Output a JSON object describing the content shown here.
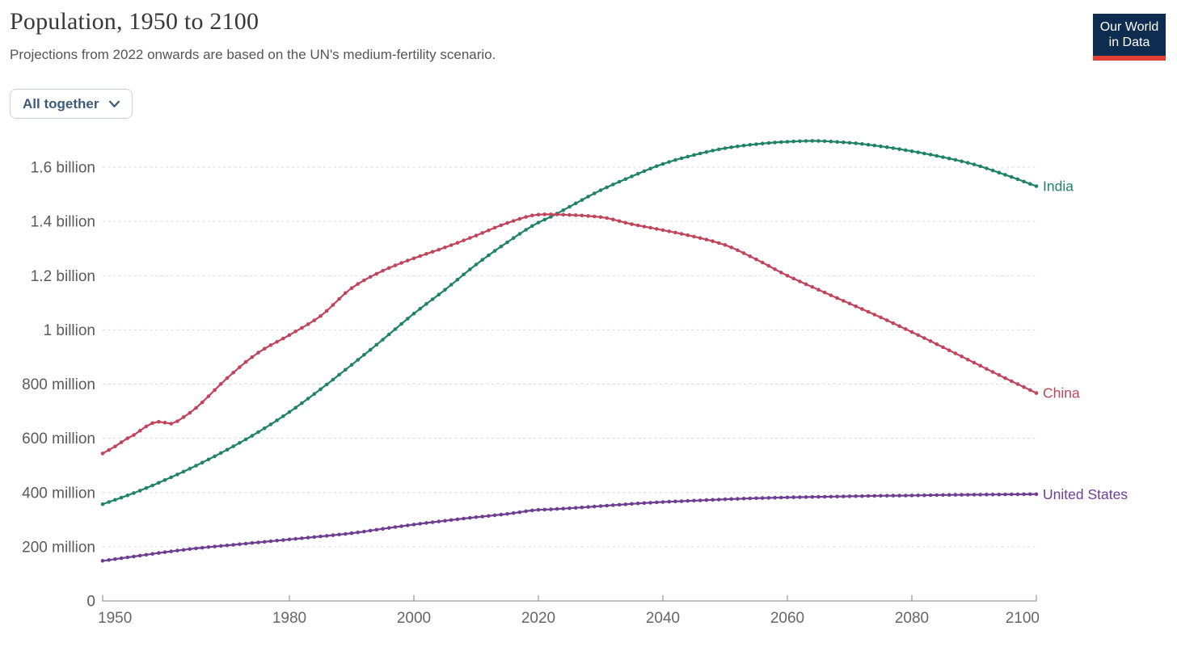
{
  "header": {
    "title": "Population, 1950 to 2100",
    "subtitle": "Projections from 2022 onwards are based on the UN's medium-fertility scenario.",
    "logo": {
      "line1": "Our World",
      "line2": "in Data",
      "bg_color": "#0d2c4f",
      "bar_color": "#e23d33",
      "text_color": "#ffffff"
    }
  },
  "controls": {
    "entity_dropdown": {
      "label": "All together",
      "icon": "chevron-down-icon"
    }
  },
  "chart_data": {
    "type": "line",
    "title": "Population, 1950 to 2100",
    "xlabel": "",
    "ylabel": "",
    "unit": "millions of people",
    "x_range": [
      1950,
      2100
    ],
    "y_range_millions": [
      0,
      1700
    ],
    "grid": "dashed horizontal gridlines",
    "legend_position": "line-end labels at right",
    "markers": "dot at every year",
    "x_ticks": [
      1950,
      1980,
      2000,
      2020,
      2040,
      2060,
      2080,
      2100
    ],
    "y_ticks": [
      {
        "value": 0,
        "label": "0"
      },
      {
        "value": 200,
        "label": "200 million"
      },
      {
        "value": 400,
        "label": "400 million"
      },
      {
        "value": 600,
        "label": "600 million"
      },
      {
        "value": 800,
        "label": "800 million"
      },
      {
        "value": 1000,
        "label": "1 billion"
      },
      {
        "value": 1200,
        "label": "1.2 billion"
      },
      {
        "value": 1400,
        "label": "1.4 billion"
      },
      {
        "value": 1600,
        "label": "1.6 billion"
      }
    ],
    "series": [
      {
        "name": "India",
        "color": "#208365",
        "points_year_millions": [
          [
            1950,
            357
          ],
          [
            1955,
            398
          ],
          [
            1960,
            446
          ],
          [
            1965,
            499
          ],
          [
            1970,
            558
          ],
          [
            1975,
            623
          ],
          [
            1980,
            697
          ],
          [
            1985,
            781
          ],
          [
            1990,
            871
          ],
          [
            1995,
            964
          ],
          [
            2000,
            1060
          ],
          [
            2005,
            1148
          ],
          [
            2010,
            1241
          ],
          [
            2015,
            1323
          ],
          [
            2020,
            1396
          ],
          [
            2022,
            1417
          ],
          [
            2025,
            1454
          ],
          [
            2030,
            1515
          ],
          [
            2035,
            1566
          ],
          [
            2040,
            1612
          ],
          [
            2045,
            1645
          ],
          [
            2050,
            1670
          ],
          [
            2055,
            1685
          ],
          [
            2060,
            1694
          ],
          [
            2064,
            1697
          ],
          [
            2070,
            1690
          ],
          [
            2075,
            1677
          ],
          [
            2080,
            1659
          ],
          [
            2085,
            1637
          ],
          [
            2090,
            1610
          ],
          [
            2095,
            1572
          ],
          [
            2100,
            1530
          ]
        ]
      },
      {
        "name": "China",
        "color": "#c0445c",
        "points_year_millions": [
          [
            1950,
            544
          ],
          [
            1952,
            570
          ],
          [
            1954,
            600
          ],
          [
            1955,
            612
          ],
          [
            1956,
            628
          ],
          [
            1957,
            644
          ],
          [
            1958,
            656
          ],
          [
            1959,
            661
          ],
          [
            1960,
            658
          ],
          [
            1961,
            654
          ],
          [
            1962,
            663
          ],
          [
            1963,
            678
          ],
          [
            1964,
            694
          ],
          [
            1965,
            712
          ],
          [
            1970,
            822
          ],
          [
            1975,
            916
          ],
          [
            1980,
            981
          ],
          [
            1985,
            1051
          ],
          [
            1990,
            1154
          ],
          [
            1995,
            1218
          ],
          [
            2000,
            1264
          ],
          [
            2005,
            1304
          ],
          [
            2010,
            1348
          ],
          [
            2015,
            1394
          ],
          [
            2020,
            1425
          ],
          [
            2021,
            1426
          ],
          [
            2022,
            1426
          ],
          [
            2025,
            1424
          ],
          [
            2030,
            1416
          ],
          [
            2035,
            1390
          ],
          [
            2040,
            1368
          ],
          [
            2045,
            1344
          ],
          [
            2050,
            1313
          ],
          [
            2055,
            1260
          ],
          [
            2060,
            1200
          ],
          [
            2065,
            1148
          ],
          [
            2070,
            1097
          ],
          [
            2075,
            1046
          ],
          [
            2080,
            992
          ],
          [
            2085,
            936
          ],
          [
            2090,
            879
          ],
          [
            2095,
            822
          ],
          [
            2100,
            767
          ]
        ]
      },
      {
        "name": "United States",
        "color": "#6d3e91",
        "points_year_millions": [
          [
            1950,
            148
          ],
          [
            1955,
            164
          ],
          [
            1960,
            180
          ],
          [
            1965,
            194
          ],
          [
            1970,
            205
          ],
          [
            1975,
            216
          ],
          [
            1980,
            227
          ],
          [
            1985,
            238
          ],
          [
            1990,
            250
          ],
          [
            1995,
            266
          ],
          [
            2000,
            282
          ],
          [
            2005,
            296
          ],
          [
            2010,
            309
          ],
          [
            2015,
            321
          ],
          [
            2020,
            336
          ],
          [
            2022,
            338
          ],
          [
            2025,
            342
          ],
          [
            2030,
            350
          ],
          [
            2035,
            358
          ],
          [
            2040,
            365
          ],
          [
            2045,
            370
          ],
          [
            2050,
            375
          ],
          [
            2055,
            379
          ],
          [
            2060,
            382
          ],
          [
            2065,
            384
          ],
          [
            2070,
            386
          ],
          [
            2075,
            388
          ],
          [
            2080,
            389
          ],
          [
            2085,
            391
          ],
          [
            2090,
            392
          ],
          [
            2095,
            393
          ],
          [
            2100,
            394
          ]
        ]
      }
    ]
  }
}
